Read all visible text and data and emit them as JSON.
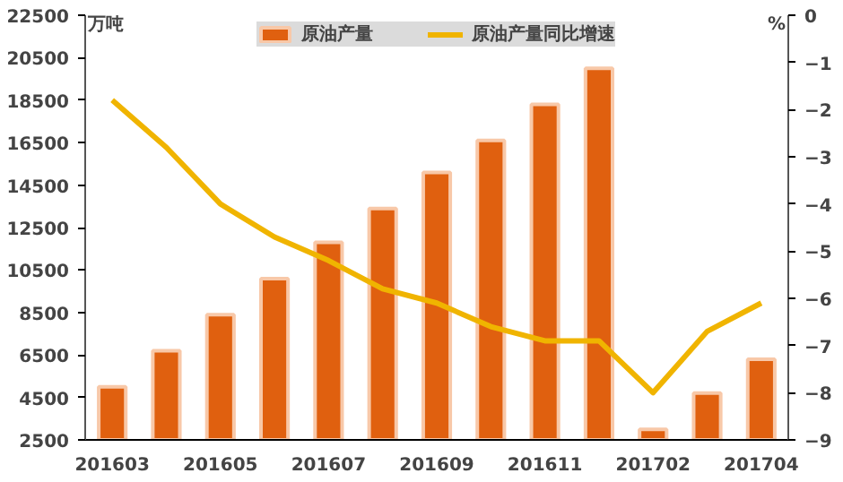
{
  "chart_data": {
    "type": "bar",
    "ylabel": "万吨",
    "y2label": "%",
    "categories": [
      "201603",
      null,
      "201605",
      null,
      "201607",
      null,
      "201609",
      null,
      "201611",
      null,
      "201702",
      null,
      "201704"
    ],
    "series": [
      {
        "name": "原油产量",
        "color": "#e0600f",
        "values": [
          5000,
          6700,
          8400,
          10100,
          11800,
          13400,
          15100,
          16600,
          18300,
          20000,
          3000,
          4700,
          6300
        ]
      },
      {
        "name": "原油产量同比增速",
        "type": "line",
        "axis": "y2",
        "color": "#f0b400",
        "values": [
          -1.8,
          -2.8,
          -4.0,
          -4.7,
          -5.2,
          -5.8,
          -6.1,
          -6.6,
          -6.9,
          -6.9,
          -8.0,
          -6.7,
          -6.1
        ]
      }
    ],
    "ylim": [
      2500,
      22500
    ],
    "yticks": [
      2500,
      4500,
      6500,
      8500,
      10500,
      12500,
      14500,
      16500,
      18500,
      20500,
      22500
    ],
    "y2lim": [
      -9,
      0
    ],
    "y2ticks": [
      -9,
      -8,
      -7,
      -6,
      -5,
      -4,
      -3,
      -2,
      -1,
      0
    ],
    "grid": false,
    "legend": "top"
  }
}
